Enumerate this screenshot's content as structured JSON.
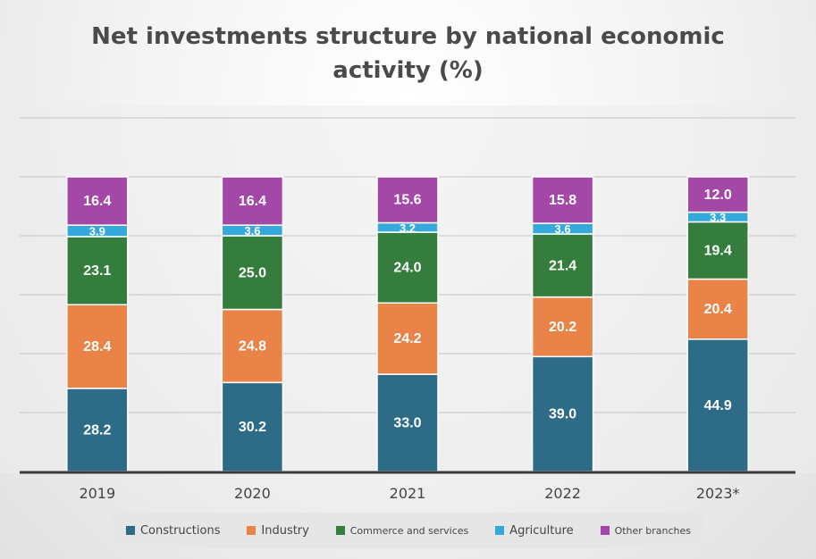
{
  "chart_data": {
    "type": "bar",
    "stacked": true,
    "title_lines": [
      "Net investments structure by national economic",
      "activity (%)"
    ],
    "categories": [
      "2019",
      "2020",
      "2021",
      "2022",
      "2023*"
    ],
    "series": [
      {
        "name": "Constructions",
        "color": "#2e6b87",
        "values": [
          28.2,
          30.2,
          33.0,
          39.0,
          44.9
        ]
      },
      {
        "name": "Industry",
        "color": "#ea8347",
        "values": [
          28.4,
          24.8,
          24.2,
          20.2,
          20.4
        ]
      },
      {
        "name": "Commerce and services",
        "color": "#347d3d",
        "values": [
          23.1,
          25.0,
          24.0,
          21.4,
          19.4
        ]
      },
      {
        "name": "Agriculture",
        "color": "#35a9dc",
        "values": [
          3.9,
          3.6,
          3.2,
          3.6,
          3.3
        ]
      },
      {
        "name": "Other branches",
        "color": "#a448a8",
        "values": [
          16.4,
          16.4,
          15.6,
          15.8,
          12.0
        ]
      }
    ],
    "value_labels": [
      [
        "28.2",
        "30.2",
        "33.0",
        "39.0",
        "44.9"
      ],
      [
        "28.4",
        "24.8",
        "24.2",
        "20.2",
        "20.4"
      ],
      [
        "23.1",
        "25.0",
        "24.0",
        "21.4",
        "19.4"
      ],
      [
        "3.9",
        "3.6",
        "3.2",
        "3.6",
        "3.3"
      ],
      [
        "16.4",
        "16.4",
        "15.6",
        "15.8",
        "12.0"
      ]
    ],
    "ylim": [
      0,
      120
    ],
    "grid": true,
    "legend_position": "bottom"
  }
}
